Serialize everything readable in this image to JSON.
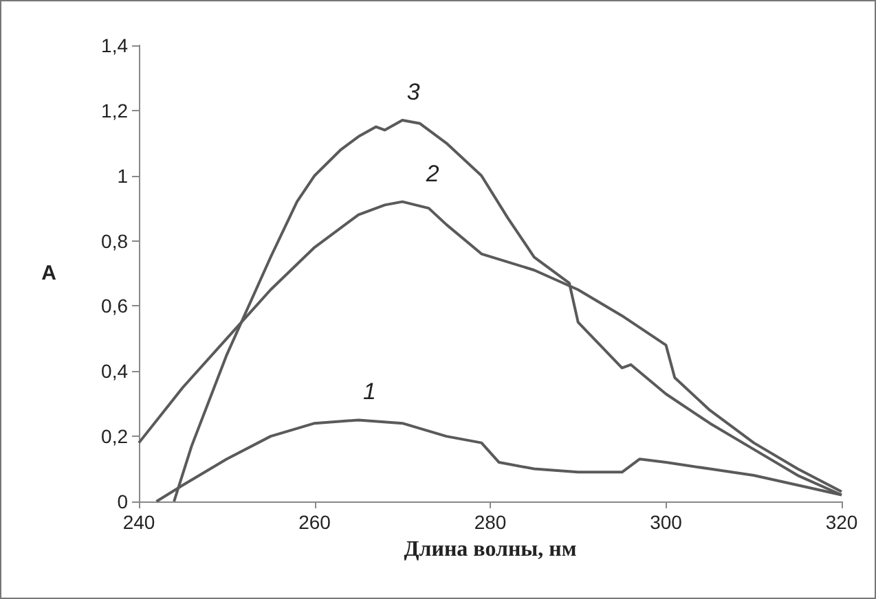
{
  "chart_data": {
    "type": "line",
    "xlabel": "Длина волны, нм",
    "ylabel": "A",
    "xlim": [
      240,
      320
    ],
    "xticks": [
      240,
      260,
      280,
      300,
      320
    ],
    "ylim": [
      0,
      1.4
    ],
    "yticks": [
      {
        "value": 0,
        "label": "0"
      },
      {
        "value": 0.2,
        "label": "0,2"
      },
      {
        "value": 0.4,
        "label": "0,4"
      },
      {
        "value": 0.6,
        "label": "0,6"
      },
      {
        "value": 0.8,
        "label": "0,8"
      },
      {
        "value": 1,
        "label": "1"
      },
      {
        "value": 1.2,
        "label": "1,2"
      },
      {
        "value": 1.4,
        "label": "1,4"
      }
    ],
    "marker": "none",
    "line_style": "solid",
    "series": [
      {
        "color": "#5a5a5a",
        "x": [
          242,
          245,
          250,
          255,
          260,
          265,
          270,
          275,
          279,
          281,
          285,
          290,
          295,
          297,
          300,
          305,
          310,
          315,
          320
        ],
        "values": [
          0,
          0.05,
          0.13,
          0.2,
          0.24,
          0.25,
          0.24,
          0.2,
          0.18,
          0.12,
          0.1,
          0.09,
          0.09,
          0.13,
          0.12,
          0.1,
          0.08,
          0.05,
          0.02
        ]
      },
      {
        "color": "#5a5a5a",
        "x": [
          240,
          245,
          250,
          255,
          260,
          265,
          268,
          270,
          273,
          275,
          279,
          285,
          290,
          295,
          300,
          301,
          305,
          310,
          315,
          320
        ],
        "values": [
          0.18,
          0.35,
          0.5,
          0.65,
          0.78,
          0.88,
          0.91,
          0.92,
          0.9,
          0.85,
          0.76,
          0.71,
          0.65,
          0.57,
          0.48,
          0.38,
          0.28,
          0.18,
          0.1,
          0.03
        ]
      },
      {
        "color": "#5a5a5a",
        "x": [
          244,
          246,
          250,
          255,
          258,
          260,
          263,
          265,
          267,
          268,
          270,
          272,
          275,
          279,
          282,
          285,
          289,
          290,
          295,
          296,
          300,
          305,
          310,
          315,
          320
        ],
        "values": [
          0,
          0.17,
          0.45,
          0.75,
          0.92,
          1,
          1.08,
          1.12,
          1.15,
          1.14,
          1.17,
          1.16,
          1.1,
          1,
          0.87,
          0.75,
          0.67,
          0.55,
          0.41,
          0.42,
          0.33,
          0.24,
          0.16,
          0.08,
          0.02
        ]
      }
    ],
    "annotations": [
      "1",
      "2",
      "3"
    ]
  }
}
